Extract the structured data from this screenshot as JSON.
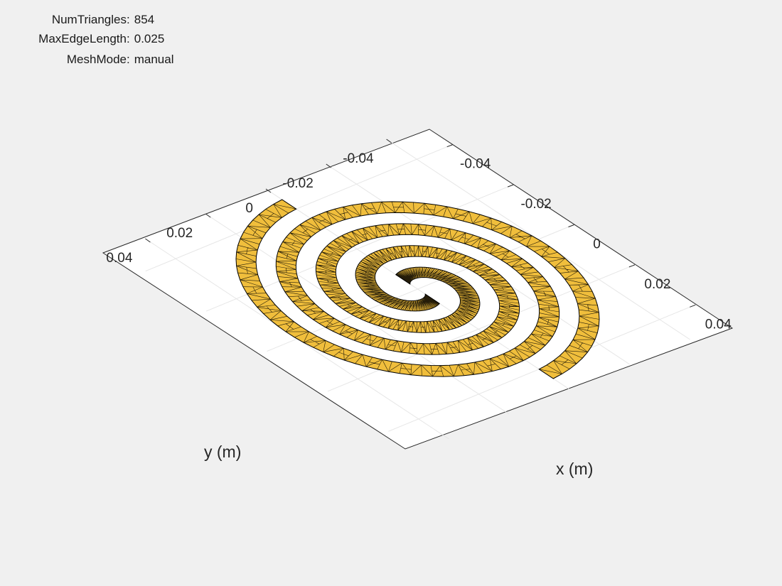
{
  "mesh_info": [
    {
      "label": "NumTriangles",
      "value": "854"
    },
    {
      "label": "MaxEdgeLength",
      "value": "0.025"
    },
    {
      "label": "MeshMode",
      "value": "manual"
    }
  ],
  "axes": {
    "x_label": "x (m)",
    "y_label": "y (m)",
    "x_ticks": [
      {
        "value": -0.04,
        "label": "-0.04"
      },
      {
        "value": -0.02,
        "label": "-0.02"
      },
      {
        "value": 0,
        "label": "0"
      },
      {
        "value": 0.02,
        "label": "0.02"
      },
      {
        "value": 0.04,
        "label": "0.04"
      }
    ],
    "y_ticks": [
      {
        "value": -0.04,
        "label": "-0.04"
      },
      {
        "value": -0.02,
        "label": "-0.02"
      },
      {
        "value": 0,
        "label": "0"
      },
      {
        "value": 0.02,
        "label": "0.02"
      },
      {
        "value": 0.04,
        "label": "0.04"
      }
    ],
    "x_range": [
      -0.05,
      0.05
    ],
    "y_range": [
      -0.05,
      0.05
    ],
    "grid": true
  },
  "colors": {
    "background": "#f0f0f0",
    "plot_plane": "#ffffff",
    "grid": "#e6e6e6",
    "metal": "#f0be3c",
    "edge": "#000000"
  },
  "geometry": {
    "type": "archimedean-spiral-2-arm",
    "inner_radius_m": 0.0025,
    "outer_radius_m": 0.04,
    "turns": 1.5
  }
}
